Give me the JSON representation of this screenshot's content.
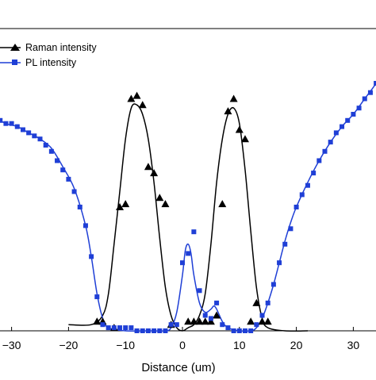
{
  "chart_data": {
    "type": "line",
    "title": "",
    "xlabel": "Distance (um)",
    "ylabel": "",
    "xlim": [
      -35,
      35
    ],
    "ylim": [
      0,
      1.0
    ],
    "xticks": [
      -30,
      -20,
      -10,
      0,
      10,
      20,
      30
    ],
    "xtick_labels": [
      "−30",
      "−20",
      "−10",
      "0",
      "10",
      "20",
      "30"
    ],
    "grid": false,
    "legend_position": "top-left",
    "series": [
      {
        "name": "Raman intensity",
        "color": "#000000",
        "marker": "triangle",
        "points": [
          [
            -15,
            0.03
          ],
          [
            -14,
            0.03
          ],
          [
            -12,
            0.01
          ],
          [
            -11,
            0.4
          ],
          [
            -10,
            0.41
          ],
          [
            -9,
            0.75
          ],
          [
            -8,
            0.76
          ],
          [
            -7,
            0.73
          ],
          [
            -6,
            0.53
          ],
          [
            -5,
            0.51
          ],
          [
            -4,
            0.43
          ],
          [
            -3,
            0.41
          ],
          [
            -2,
            0.02
          ],
          [
            1,
            0.03
          ],
          [
            2,
            0.03
          ],
          [
            3,
            0.03
          ],
          [
            4,
            0.03
          ],
          [
            5,
            0.03
          ],
          [
            6,
            0.05
          ],
          [
            7,
            0.41
          ],
          [
            8,
            0.71
          ],
          [
            9,
            0.75
          ],
          [
            10,
            0.65
          ],
          [
            11,
            0.62
          ],
          [
            12,
            0.03
          ],
          [
            13,
            0.09
          ],
          [
            14,
            0.03
          ],
          [
            15,
            0.03
          ]
        ],
        "curve": [
          [
            -20,
            0.02
          ],
          [
            -16,
            0.02
          ],
          [
            -14,
            0.05
          ],
          [
            -13,
            0.12
          ],
          [
            -12,
            0.28
          ],
          [
            -11,
            0.45
          ],
          [
            -10,
            0.62
          ],
          [
            -9,
            0.72
          ],
          [
            -8,
            0.73
          ],
          [
            -7,
            0.7
          ],
          [
            -6,
            0.62
          ],
          [
            -5,
            0.48
          ],
          [
            -4,
            0.3
          ],
          [
            -3,
            0.14
          ],
          [
            -2,
            0.05
          ],
          [
            -1,
            0.01
          ],
          [
            0,
            0.0
          ],
          [
            1,
            0.01
          ],
          [
            2,
            0.02
          ],
          [
            3,
            0.05
          ],
          [
            4,
            0.12
          ],
          [
            5,
            0.28
          ],
          [
            6,
            0.48
          ],
          [
            7,
            0.62
          ],
          [
            8,
            0.7
          ],
          [
            9,
            0.72
          ],
          [
            10,
            0.67
          ],
          [
            11,
            0.52
          ],
          [
            12,
            0.32
          ],
          [
            13,
            0.14
          ],
          [
            14,
            0.04
          ],
          [
            15,
            0.01
          ],
          [
            18,
            0.0
          ],
          [
            22,
            0.0
          ]
        ]
      },
      {
        "name": "PL intensity",
        "color": "#1f3fd6",
        "marker": "square",
        "points": [
          [
            -35,
            0.7
          ],
          [
            -34,
            0.69
          ],
          [
            -33,
            0.68
          ],
          [
            -32,
            0.68
          ],
          [
            -31,
            0.67
          ],
          [
            -30,
            0.67
          ],
          [
            -29,
            0.66
          ],
          [
            -28,
            0.65
          ],
          [
            -27,
            0.64
          ],
          [
            -26,
            0.63
          ],
          [
            -25,
            0.62
          ],
          [
            -24,
            0.6
          ],
          [
            -23,
            0.58
          ],
          [
            -22,
            0.55
          ],
          [
            -21,
            0.52
          ],
          [
            -20,
            0.49
          ],
          [
            -19,
            0.45
          ],
          [
            -18,
            0.4
          ],
          [
            -17,
            0.34
          ],
          [
            -16,
            0.24
          ],
          [
            -15,
            0.11
          ],
          [
            -14,
            0.02
          ],
          [
            -13,
            0.01
          ],
          [
            -12,
            0.01
          ],
          [
            -11,
            0.01
          ],
          [
            -10,
            0.01
          ],
          [
            -9,
            0.01
          ],
          [
            -8,
            0.0
          ],
          [
            -7,
            0.0
          ],
          [
            -6,
            0.0
          ],
          [
            -5,
            0.0
          ],
          [
            -4,
            0.0
          ],
          [
            -3,
            0.0
          ],
          [
            -2,
            0.02
          ],
          [
            -1,
            0.02
          ],
          [
            0,
            0.22
          ],
          [
            1,
            0.25
          ],
          [
            2,
            0.32
          ],
          [
            3,
            0.13
          ],
          [
            4,
            0.05
          ],
          [
            5,
            0.04
          ],
          [
            6,
            0.09
          ],
          [
            7,
            0.02
          ],
          [
            8,
            0.01
          ],
          [
            9,
            0.0
          ],
          [
            10,
            0.0
          ],
          [
            11,
            0.0
          ],
          [
            12,
            0.0
          ],
          [
            13,
            0.02
          ],
          [
            14,
            0.05
          ],
          [
            15,
            0.09
          ],
          [
            16,
            0.15
          ],
          [
            17,
            0.22
          ],
          [
            18,
            0.28
          ],
          [
            19,
            0.33
          ],
          [
            20,
            0.4
          ],
          [
            21,
            0.44
          ],
          [
            22,
            0.47
          ],
          [
            23,
            0.51
          ],
          [
            24,
            0.55
          ],
          [
            25,
            0.58
          ],
          [
            26,
            0.61
          ],
          [
            27,
            0.64
          ],
          [
            28,
            0.66
          ],
          [
            29,
            0.68
          ],
          [
            30,
            0.7
          ],
          [
            31,
            0.72
          ],
          [
            32,
            0.75
          ],
          [
            33,
            0.77
          ],
          [
            34,
            0.8
          ],
          [
            35,
            0.84
          ]
        ],
        "curve": [
          [
            -35,
            0.71
          ],
          [
            -33,
            0.69
          ],
          [
            -31,
            0.67
          ],
          [
            -29,
            0.66
          ],
          [
            -27,
            0.64
          ],
          [
            -25,
            0.62
          ],
          [
            -23,
            0.59
          ],
          [
            -21,
            0.53
          ],
          [
            -19,
            0.46
          ],
          [
            -17,
            0.34
          ],
          [
            -16,
            0.24
          ],
          [
            -15,
            0.12
          ],
          [
            -14,
            0.04
          ],
          [
            -13,
            0.01
          ],
          [
            -10,
            0.0
          ],
          [
            -6,
            0.0
          ],
          [
            -3,
            0.0
          ],
          [
            -2,
            0.01
          ],
          [
            -1,
            0.06
          ],
          [
            0,
            0.18
          ],
          [
            0.5,
            0.26
          ],
          [
            1,
            0.28
          ],
          [
            1.5,
            0.25
          ],
          [
            2,
            0.18
          ],
          [
            3,
            0.09
          ],
          [
            4,
            0.06
          ],
          [
            5,
            0.07
          ],
          [
            5.5,
            0.08
          ],
          [
            6,
            0.07
          ],
          [
            7,
            0.03
          ],
          [
            8,
            0.01
          ],
          [
            10,
            0.0
          ],
          [
            12,
            0.0
          ],
          [
            13,
            0.01
          ],
          [
            14,
            0.04
          ],
          [
            15,
            0.09
          ],
          [
            16,
            0.15
          ],
          [
            17,
            0.22
          ],
          [
            18,
            0.29
          ],
          [
            19,
            0.35
          ],
          [
            20,
            0.4
          ],
          [
            22,
            0.48
          ],
          [
            24,
            0.55
          ],
          [
            26,
            0.61
          ],
          [
            28,
            0.66
          ],
          [
            30,
            0.7
          ],
          [
            32,
            0.75
          ],
          [
            34,
            0.8
          ],
          [
            35,
            0.84
          ]
        ]
      }
    ]
  }
}
